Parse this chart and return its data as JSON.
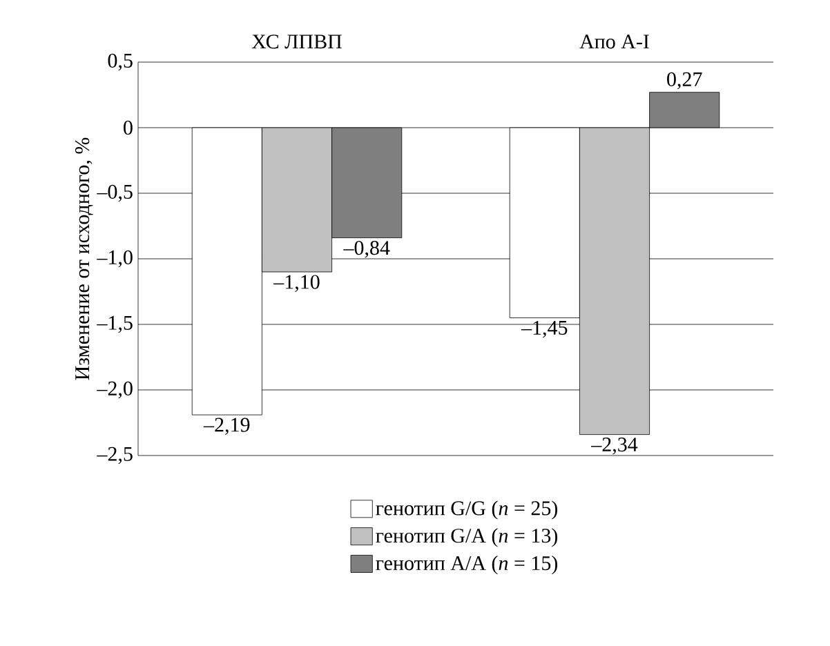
{
  "chart_data": {
    "type": "bar",
    "ylabel": "Изменение от исходного, %",
    "categories": [
      "ХС ЛПВП",
      "Апо A-I"
    ],
    "series": [
      {
        "name": "генотип G/G (*n* = 25)",
        "color": "#ffffff",
        "values": [
          -2.19,
          -1.45
        ],
        "value_labels": [
          "–2,19",
          "–1,45"
        ]
      },
      {
        "name": "генотип G/A (*n* = 13)",
        "color": "#c0c0c0",
        "values": [
          -1.1,
          -2.34
        ],
        "value_labels": [
          "–1,10",
          "–2,34"
        ]
      },
      {
        "name": "генотип A/A (*n* = 15)",
        "color": "#7f7f7f",
        "values": [
          -0.84,
          0.27
        ],
        "value_labels": [
          "–0,84",
          "0,27"
        ]
      }
    ],
    "ylim": [
      -2.5,
      0.5
    ],
    "yticks": [
      {
        "value": 0.5,
        "label": "0,5"
      },
      0,
      {
        "value": -0.5,
        "label": "–0,5"
      },
      {
        "value": -1.0,
        "label": "–1,0"
      },
      {
        "value": -1.5,
        "label": "–1,5"
      },
      {
        "value": -2.0,
        "label": "–2,0"
      },
      {
        "value": -2.5,
        "label": "–2,5"
      }
    ],
    "grid": "y",
    "legend": "bottom"
  }
}
